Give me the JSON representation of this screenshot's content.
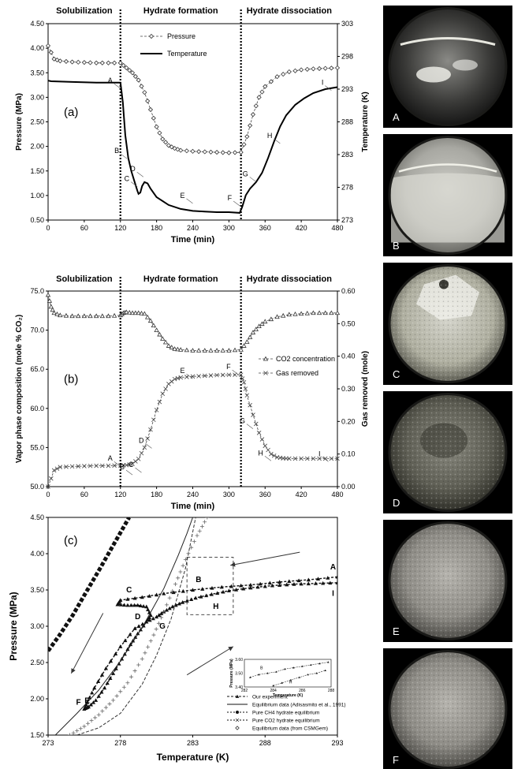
{
  "phase_labels": [
    "Solubilization",
    "Hydrate formation",
    "Hydrate dissociation"
  ],
  "chart_data": [
    {
      "type": "line",
      "panel_label": "(a)",
      "xlabel": "Time (min)",
      "ylabel": "Pressure (MPa)",
      "ylabel_right": "Temperature (K)",
      "xlim": [
        0,
        480
      ],
      "ylim": [
        0.5,
        4.5
      ],
      "ylim_right": [
        273,
        303
      ],
      "xticks": [
        "0",
        "60",
        "120",
        "180",
        "240",
        "300",
        "360",
        "420",
        "480"
      ],
      "yticks": [
        "0.50",
        "1.00",
        "1.50",
        "2.00",
        "2.50",
        "3.00",
        "3.50",
        "4.00",
        "4.50"
      ],
      "yticks_right": [
        "273",
        "278",
        "283",
        "288",
        "293",
        "298",
        "303"
      ],
      "phase_lines": [
        120,
        320
      ],
      "legend": {
        "placement": "top-center",
        "entries": [
          "Pressure",
          "Temperature"
        ]
      },
      "series": [
        {
          "name": "Pressure",
          "axis": "left",
          "style": "dashed-diamond",
          "x": [
            0,
            10,
            20,
            40,
            60,
            80,
            100,
            120,
            130,
            140,
            150,
            160,
            170,
            180,
            190,
            200,
            210,
            220,
            240,
            260,
            280,
            300,
            320,
            330,
            340,
            350,
            360,
            380,
            400,
            420,
            440,
            460,
            480
          ],
          "y": [
            4.05,
            3.78,
            3.74,
            3.72,
            3.71,
            3.7,
            3.7,
            3.7,
            3.6,
            3.5,
            3.35,
            3.1,
            2.75,
            2.4,
            2.15,
            2.02,
            1.96,
            1.92,
            1.9,
            1.89,
            1.88,
            1.87,
            1.88,
            2.2,
            2.65,
            3.0,
            3.22,
            3.42,
            3.52,
            3.56,
            3.58,
            3.59,
            3.6
          ]
        },
        {
          "name": "Temperature",
          "axis": "right",
          "style": "solid",
          "x": [
            0,
            5,
            40,
            80,
            120,
            124,
            128,
            133,
            138,
            143,
            148,
            150,
            153,
            156,
            160,
            165,
            170,
            180,
            200,
            220,
            240,
            260,
            280,
            300,
            318,
            322,
            328,
            335,
            345,
            355,
            365,
            375,
            385,
            395,
            410,
            425,
            440,
            460,
            480
          ],
          "y": [
            294.3,
            294.2,
            294.1,
            294.0,
            294.0,
            291.0,
            286.0,
            282.5,
            280.5,
            279.0,
            277.5,
            277.0,
            277.2,
            278.2,
            278.8,
            278.6,
            277.8,
            276.5,
            275.3,
            274.7,
            274.4,
            274.3,
            274.2,
            274.2,
            274.1,
            275.0,
            276.8,
            277.8,
            278.8,
            280.2,
            282.5,
            285.0,
            287.3,
            289.0,
            290.6,
            291.6,
            292.4,
            293.0,
            293.3
          ]
        }
      ],
      "annotations": [
        {
          "label": "A",
          "x": 120,
          "y": 3.18
        },
        {
          "label": "B",
          "x": 131,
          "y": 1.75
        },
        {
          "label": "C",
          "x": 148,
          "y": 1.18
        },
        {
          "label": "D",
          "x": 158,
          "y": 1.38
        },
        {
          "label": "E",
          "x": 240,
          "y": 0.84
        },
        {
          "label": "F",
          "x": 318,
          "y": 0.79
        },
        {
          "label": "G",
          "x": 345,
          "y": 1.28
        },
        {
          "label": "H",
          "x": 385,
          "y": 2.06
        },
        {
          "label": "I",
          "x": 470,
          "y": 3.14
        }
      ]
    },
    {
      "type": "line",
      "panel_label": "(b)",
      "xlabel": "Time (min)",
      "ylabel": "Vapor phase composition (mole % CO₂)",
      "ylabel_right": "Gas removed (mole)",
      "xlim": [
        0,
        480
      ],
      "ylim": [
        50,
        75
      ],
      "ylim_right": [
        0,
        0.6
      ],
      "xticks": [
        "0",
        "60",
        "120",
        "180",
        "240",
        "300",
        "360",
        "420",
        "480"
      ],
      "yticks": [
        "50.0",
        "55.0",
        "60.0",
        "65.0",
        "70.0",
        "75.0"
      ],
      "yticks_right": [
        "0.00",
        "0.10",
        "0.20",
        "0.30",
        "0.40",
        "0.50",
        "0.60"
      ],
      "phase_lines": [
        120,
        320
      ],
      "legend": {
        "placement": "right",
        "entries": [
          "CO2 concentration",
          "Gas removed"
        ]
      },
      "series": [
        {
          "name": "CO2 concentration",
          "axis": "left",
          "style": "dashed-triangle",
          "x": [
            0,
            5,
            10,
            20,
            40,
            60,
            80,
            100,
            120,
            125,
            130,
            140,
            150,
            160,
            170,
            180,
            190,
            200,
            210,
            220,
            240,
            260,
            280,
            300,
            320,
            330,
            340,
            350,
            360,
            380,
            400,
            420,
            440,
            460,
            480
          ],
          "y": [
            74.5,
            73.0,
            72.2,
            71.9,
            71.8,
            71.8,
            71.8,
            71.8,
            71.9,
            72.2,
            72.3,
            72.2,
            72.2,
            72.1,
            71.2,
            70.0,
            68.9,
            68.0,
            67.6,
            67.5,
            67.4,
            67.4,
            67.4,
            67.4,
            67.5,
            68.5,
            69.7,
            70.5,
            71.1,
            71.7,
            72.0,
            72.1,
            72.2,
            72.2,
            72.2
          ]
        },
        {
          "name": "Gas removed",
          "axis": "right",
          "style": "dashed-cross",
          "x": [
            0,
            10,
            20,
            40,
            60,
            80,
            100,
            120,
            130,
            140,
            150,
            160,
            170,
            180,
            190,
            200,
            210,
            220,
            240,
            260,
            280,
            300,
            320,
            325,
            330,
            340,
            350,
            360,
            370,
            380,
            390,
            400,
            420,
            440,
            460,
            480
          ],
          "y": [
            0.0,
            0.05,
            0.06,
            0.062,
            0.063,
            0.064,
            0.064,
            0.065,
            0.066,
            0.07,
            0.085,
            0.12,
            0.175,
            0.235,
            0.285,
            0.315,
            0.33,
            0.335,
            0.338,
            0.34,
            0.342,
            0.343,
            0.343,
            0.32,
            0.28,
            0.22,
            0.165,
            0.125,
            0.1,
            0.09,
            0.087,
            0.086,
            0.086,
            0.086,
            0.086,
            0.086
          ]
        }
      ],
      "annotations": [
        {
          "label": "A",
          "x": 120,
          "y": 52.6
        },
        {
          "label": "B",
          "x": 140,
          "y": 51.5
        },
        {
          "label": "C",
          "x": 155,
          "y": 51.8
        },
        {
          "label": "D",
          "x": 172,
          "y": 54.9
        },
        {
          "label": "E",
          "x": 240,
          "y": 63.8
        },
        {
          "label": "F",
          "x": 316,
          "y": 64.3
        },
        {
          "label": "G",
          "x": 340,
          "y": 57.4
        },
        {
          "label": "H",
          "x": 370,
          "y": 53.3
        },
        {
          "label": "I",
          "x": 465,
          "y": 53.2
        }
      ]
    },
    {
      "type": "line",
      "panel_label": "(c)",
      "xlabel": "Temperature (K)",
      "ylabel": "Pressure (MPa)",
      "xlim": [
        273,
        293
      ],
      "ylim": [
        1.5,
        4.5
      ],
      "xticks": [
        "273",
        "278",
        "283",
        "288",
        "293"
      ],
      "yticks": [
        "1.50",
        "2.00",
        "2.50",
        "3.00",
        "3.50",
        "4.00",
        "4.50"
      ],
      "legend": {
        "placement": "bottom-right",
        "entries": [
          "Our experiment",
          "Equilibrium data (Adisasmito et al., 1991)",
          "Pure CH4 hydrate equilibrium",
          "Pure CO2 hydrate equilibrium",
          "Equilibrium data (from CSMGem)"
        ]
      },
      "series": [
        {
          "name": "Our experiment",
          "style": "dashed-triangle",
          "x": [
            293.0,
            291.0,
            289.0,
            287.0,
            285.0,
            283.0,
            281.0,
            279.5,
            278.0,
            277.8,
            278.5,
            279.2,
            279.8,
            280.1,
            279.8,
            279.2,
            278.7,
            278.1,
            277.5,
            276.9,
            276.3,
            275.8,
            275.5,
            275.7,
            276.2,
            277.0,
            278.0,
            279.0,
            279.8,
            280.5,
            281.0,
            281.6,
            282.3,
            283.2,
            284.3,
            285.5,
            287.0,
            288.5,
            290.0,
            291.5,
            293.0
          ],
          "y": [
            3.68,
            3.64,
            3.61,
            3.57,
            3.54,
            3.5,
            3.45,
            3.4,
            3.36,
            3.3,
            3.29,
            3.29,
            3.27,
            3.15,
            3.06,
            2.9,
            2.75,
            2.55,
            2.35,
            2.15,
            1.98,
            1.89,
            1.86,
            1.95,
            2.15,
            2.42,
            2.72,
            2.97,
            3.06,
            3.13,
            3.2,
            3.27,
            3.33,
            3.39,
            3.44,
            3.49,
            3.53,
            3.56,
            3.58,
            3.59,
            3.6
          ]
        },
        {
          "name": "Equilibrium data (Adisasmito et al., 1991)",
          "style": "solid-thin",
          "x": [
            273.5,
            275.0,
            276.5,
            278.0,
            279.5,
            281.0,
            282.0,
            282.6,
            283.0
          ],
          "y": [
            1.5,
            1.8,
            2.12,
            2.52,
            2.98,
            3.52,
            3.98,
            4.28,
            4.5
          ]
        },
        {
          "name": "Pure CH4 hydrate equilibrium",
          "style": "thick-square",
          "x": [
            273.0,
            273.8,
            274.7,
            275.6,
            276.6,
            277.6,
            278.6
          ],
          "y": [
            2.66,
            2.88,
            3.15,
            3.46,
            3.8,
            4.15,
            4.5
          ]
        },
        {
          "name": "Pure CO2 hydrate equilibrium",
          "style": "dashed-thin",
          "x": [
            275.0,
            276.5,
            278.0,
            279.5,
            280.5,
            281.5,
            282.5,
            283.2
          ],
          "y": [
            1.5,
            1.6,
            1.8,
            2.2,
            2.6,
            3.1,
            3.8,
            4.5
          ]
        },
        {
          "name": "Equilibrium data (from CSMGem)",
          "style": "cross",
          "x": [
            274.5,
            275.5,
            276.5,
            277.5,
            278.5,
            279.5,
            280.3,
            281.0,
            281.8,
            282.5,
            283.3,
            284.0
          ],
          "y": [
            1.5,
            1.62,
            1.78,
            1.98,
            2.22,
            2.55,
            2.88,
            3.2,
            3.58,
            3.92,
            4.25,
            4.5
          ]
        }
      ],
      "annotations": [
        {
          "label": "A",
          "x": 292.7,
          "y": 3.78
        },
        {
          "label": "B",
          "x": 283.4,
          "y": 3.61
        },
        {
          "label": "C",
          "x": 278.6,
          "y": 3.47
        },
        {
          "label": "D",
          "x": 279.2,
          "y": 3.1
        },
        {
          "label": "E",
          "x": 275.7,
          "y": 1.94
        },
        {
          "label": "F",
          "x": 275.1,
          "y": 1.92
        },
        {
          "label": "G",
          "x": 280.9,
          "y": 2.97
        },
        {
          "label": "H",
          "x": 284.6,
          "y": 3.24
        },
        {
          "label": "I",
          "x": 292.7,
          "y": 3.42
        }
      ],
      "inset": {
        "xlabel": "Temperature (K)",
        "ylabel": "Pressure (MPa)",
        "xlim": [
          282,
          288
        ],
        "ylim": [
          3.4,
          3.6
        ],
        "xticks": [
          "282",
          "284",
          "286",
          "288"
        ],
        "yticks": [
          "3.40",
          "3.50",
          "3.60"
        ],
        "labels": [
          "B",
          "H"
        ]
      }
    }
  ],
  "photos": [
    {
      "label": "A",
      "state": "clear"
    },
    {
      "label": "B",
      "state": "turbid"
    },
    {
      "label": "C",
      "state": "crystal"
    },
    {
      "label": "D",
      "state": "dark"
    },
    {
      "label": "E",
      "state": "grainy"
    },
    {
      "label": "F",
      "state": "grainy"
    }
  ]
}
